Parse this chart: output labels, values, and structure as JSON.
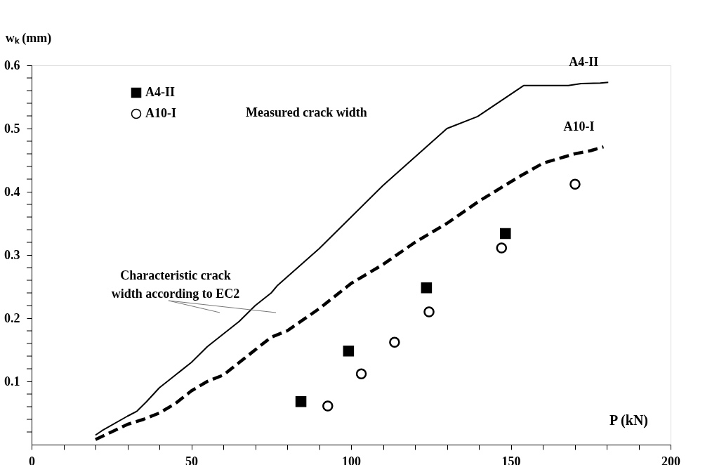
{
  "chart_data": {
    "type": "line",
    "xlabel": "P (kN)",
    "ylabel": "wₖ (mm)",
    "xlim": [
      0,
      200
    ],
    "ylim": [
      0,
      0.6
    ],
    "xticks": [
      0,
      {
        "value": 10,
        "label": null
      },
      {
        "value": 20,
        "label": null
      },
      {
        "value": 30,
        "label": null
      },
      {
        "value": 40,
        "label": null
      },
      50,
      {
        "value": 60,
        "label": null
      },
      {
        "value": 70,
        "label": null
      },
      {
        "value": 80,
        "label": null
      },
      {
        "value": 90,
        "label": null
      },
      100,
      {
        "value": 110,
        "label": null
      },
      {
        "value": 120,
        "label": null
      },
      {
        "value": 130,
        "label": null
      },
      {
        "value": 140,
        "label": null
      },
      150,
      {
        "value": 160,
        "label": null
      },
      {
        "value": 170,
        "label": null
      },
      {
        "value": 180,
        "label": null
      },
      {
        "value": 190,
        "label": null
      },
      200
    ],
    "yticks": [
      {
        "value": 0.02,
        "label": null
      },
      {
        "value": 0.04,
        "label": null
      },
      {
        "value": 0.06,
        "label": null
      },
      {
        "value": 0.08,
        "label": null
      },
      0.1,
      {
        "value": 0.12,
        "label": null
      },
      {
        "value": 0.14,
        "label": null
      },
      {
        "value": 0.16,
        "label": null
      },
      {
        "value": 0.18,
        "label": null
      },
      0.2,
      {
        "value": 0.22,
        "label": null
      },
      {
        "value": 0.24,
        "label": null
      },
      {
        "value": 0.26,
        "label": null
      },
      {
        "value": 0.28,
        "label": null
      },
      0.3,
      {
        "value": 0.32,
        "label": null
      },
      {
        "value": 0.34,
        "label": null
      },
      {
        "value": 0.36,
        "label": null
      },
      {
        "value": 0.38,
        "label": null
      },
      0.4,
      {
        "value": 0.42,
        "label": null
      },
      {
        "value": 0.44,
        "label": null
      },
      {
        "value": 0.46,
        "label": null
      },
      {
        "value": 0.48,
        "label": null
      },
      0.5,
      {
        "value": 0.52,
        "label": null
      },
      {
        "value": 0.54,
        "label": null
      },
      {
        "value": 0.56,
        "label": null
      },
      {
        "value": 0.58,
        "label": null
      },
      0.6
    ],
    "grid": false,
    "legend": "top left",
    "series": [
      {
        "name": "A4-II",
        "color": "#000000",
        "line_style": "solid",
        "x": [
          20,
          22,
          30,
          33,
          36,
          40,
          45,
          50,
          55,
          60,
          65,
          67,
          70,
          75,
          77,
          90,
          100,
          110,
          120,
          130,
          139.6,
          154,
          168,
          172,
          178,
          180.5
        ],
        "values": [
          0.015,
          0.022,
          0.045,
          0.053,
          0.068,
          0.09,
          0.11,
          0.13,
          0.155,
          0.175,
          0.195,
          0.205,
          0.22,
          0.24,
          0.252,
          0.31,
          0.36,
          0.41,
          0.455,
          0.5,
          0.519,
          0.568,
          0.568,
          0.571,
          0.572,
          0.573
        ]
      },
      {
        "name": "A10-I",
        "color": "#000000",
        "line_style": "dashed",
        "x": [
          20,
          25,
          30,
          35,
          40,
          45,
          50,
          55,
          60,
          65,
          70,
          75,
          80,
          90,
          100,
          110,
          120,
          130,
          140,
          153,
          160,
          170,
          175,
          179
        ],
        "values": [
          0.008,
          0.02,
          0.032,
          0.04,
          0.05,
          0.065,
          0.085,
          0.1,
          0.11,
          0.13,
          0.15,
          0.17,
          0.18,
          0.215,
          0.255,
          0.285,
          0.32,
          0.35,
          0.385,
          0.425,
          0.445,
          0.46,
          0.465,
          0.471
        ]
      },
      {
        "name": "A4-II",
        "type": "scatter",
        "marker": "square",
        "color": "#000000",
        "x": [
          84.3,
          99.2,
          123.6,
          148.3
        ],
        "values": [
          0.068,
          0.148,
          0.248,
          0.334
        ]
      },
      {
        "name": "A10-I",
        "type": "scatter",
        "marker": "circle",
        "color": "#000000",
        "x": [
          92.7,
          103.2,
          113.6,
          124.4,
          147.1,
          170.1
        ],
        "values": [
          0.061,
          0.112,
          0.162,
          0.21,
          0.311,
          0.412
        ]
      }
    ],
    "annotations": [
      "Measured crack width",
      "Characteristic crack\nwidth according to EC2"
    ]
  }
}
